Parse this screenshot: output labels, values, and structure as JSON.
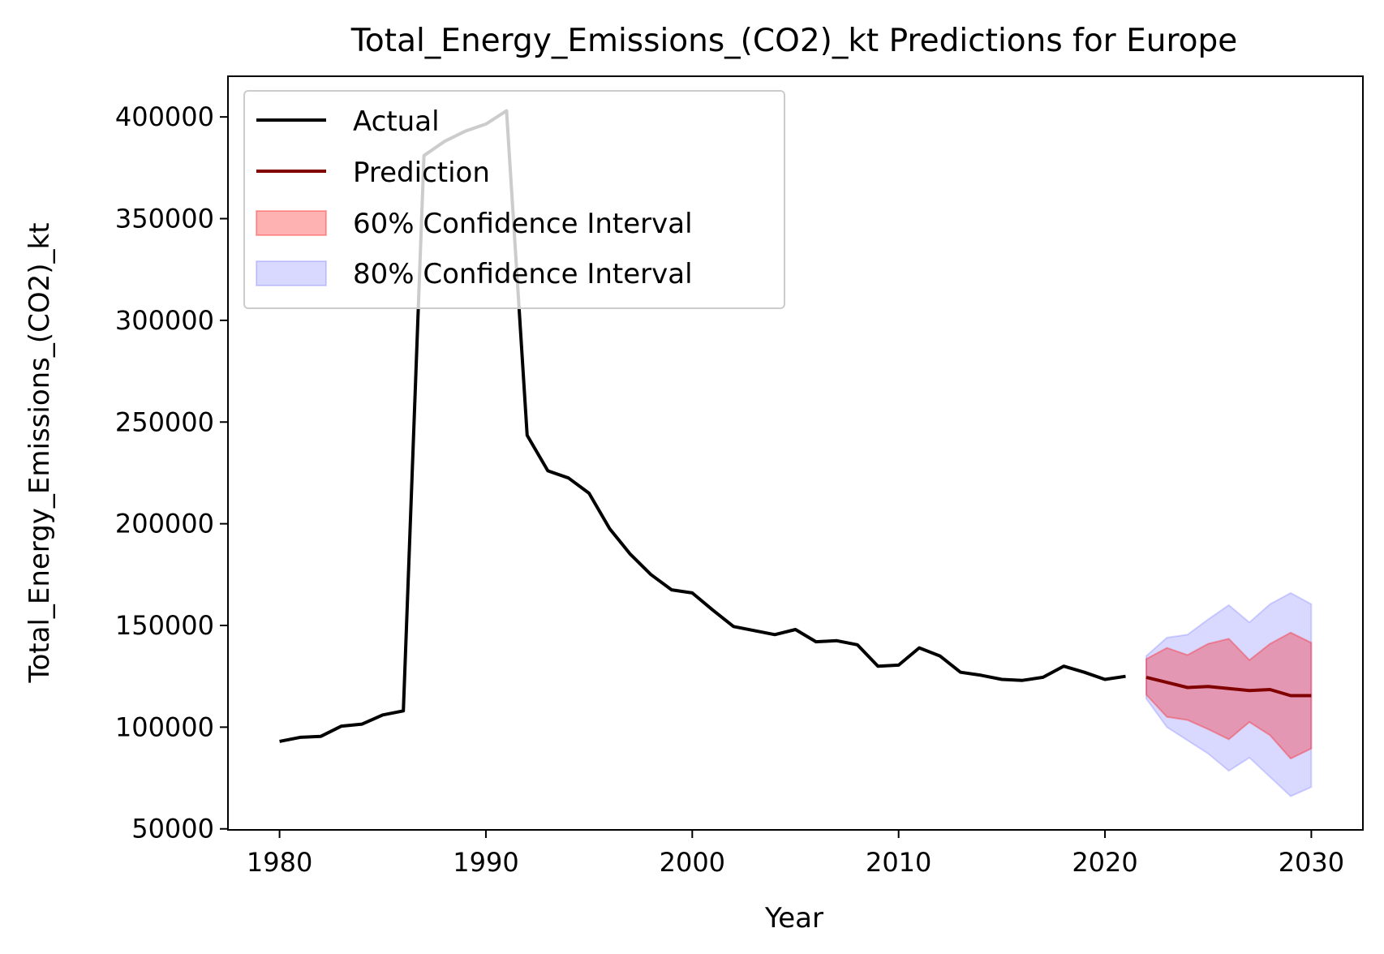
{
  "chart_data": {
    "type": "line",
    "title": "Total_Energy_Emissions_(CO2)_kt Predictions for Europe",
    "xlabel": "Year",
    "ylabel": "Total_Energy_Emissions_(CO2)_kt",
    "xlim": [
      1977.5,
      2032.5
    ],
    "ylim": [
      49500,
      420000
    ],
    "xticks": [
      1980,
      1990,
      2000,
      2010,
      2020,
      2030
    ],
    "yticks": [
      50000,
      100000,
      150000,
      200000,
      250000,
      300000,
      350000,
      400000
    ],
    "grid": false,
    "legend_position": "upper-left",
    "legend": [
      {
        "label": "Actual",
        "kind": "line",
        "color": "#000000"
      },
      {
        "label": "Prediction",
        "kind": "line",
        "color": "#800000"
      },
      {
        "label": "60% Confidence Interval",
        "kind": "patch",
        "color": "#ff0000",
        "alpha": 0.3
      },
      {
        "label": "80% Confidence Interval",
        "kind": "patch",
        "color": "#0000ff",
        "alpha": 0.15
      }
    ],
    "series": [
      {
        "name": "Actual",
        "color": "#000000",
        "x": [
          1980,
          1981,
          1982,
          1983,
          1984,
          1985,
          1986,
          1987,
          1988,
          1989,
          1990,
          1991,
          1992,
          1993,
          1994,
          1995,
          1996,
          1997,
          1998,
          1999,
          2000,
          2001,
          2002,
          2003,
          2004,
          2005,
          2006,
          2007,
          2008,
          2009,
          2010,
          2011,
          2012,
          2013,
          2014,
          2015,
          2016,
          2017,
          2018,
          2019,
          2020,
          2021
        ],
        "y": [
          93000,
          95000,
          95500,
          100500,
          101500,
          106000,
          108000,
          381000,
          388000,
          393000,
          396500,
          403000,
          243500,
          226000,
          222500,
          215000,
          197500,
          185000,
          175000,
          167500,
          166000,
          157500,
          149500,
          147500,
          145500,
          148000,
          142000,
          142500,
          140500,
          130000,
          130500,
          139000,
          135000,
          127000,
          125500,
          123500,
          123000,
          124500,
          130000,
          127000,
          123500,
          125000
        ]
      },
      {
        "name": "Prediction",
        "color": "#800000",
        "x": [
          2022,
          2023,
          2024,
          2025,
          2026,
          2027,
          2028,
          2029,
          2030
        ],
        "y": [
          124500,
          122000,
          119500,
          120000,
          119000,
          118000,
          118500,
          115500,
          115500
        ]
      }
    ],
    "bands": [
      {
        "name": "80% Confidence Interval",
        "color": "#0000ff",
        "alpha": 0.15,
        "x": [
          2022,
          2023,
          2024,
          2025,
          2026,
          2027,
          2028,
          2029,
          2030
        ],
        "lower": [
          114000,
          100000,
          93500,
          87000,
          78500,
          85000,
          75500,
          66000,
          70500
        ],
        "upper": [
          135000,
          144000,
          145500,
          153000,
          160000,
          151500,
          160500,
          166000,
          160500
        ]
      },
      {
        "name": "60% Confidence Interval",
        "color": "#ff0000",
        "alpha": 0.3,
        "x": [
          2022,
          2023,
          2024,
          2025,
          2026,
          2027,
          2028,
          2029,
          2030
        ],
        "lower": [
          116000,
          105000,
          103500,
          99000,
          94000,
          102500,
          96000,
          84500,
          89500
        ],
        "upper": [
          133500,
          139000,
          135500,
          141000,
          143500,
          133000,
          141000,
          146500,
          141500
        ]
      }
    ]
  }
}
